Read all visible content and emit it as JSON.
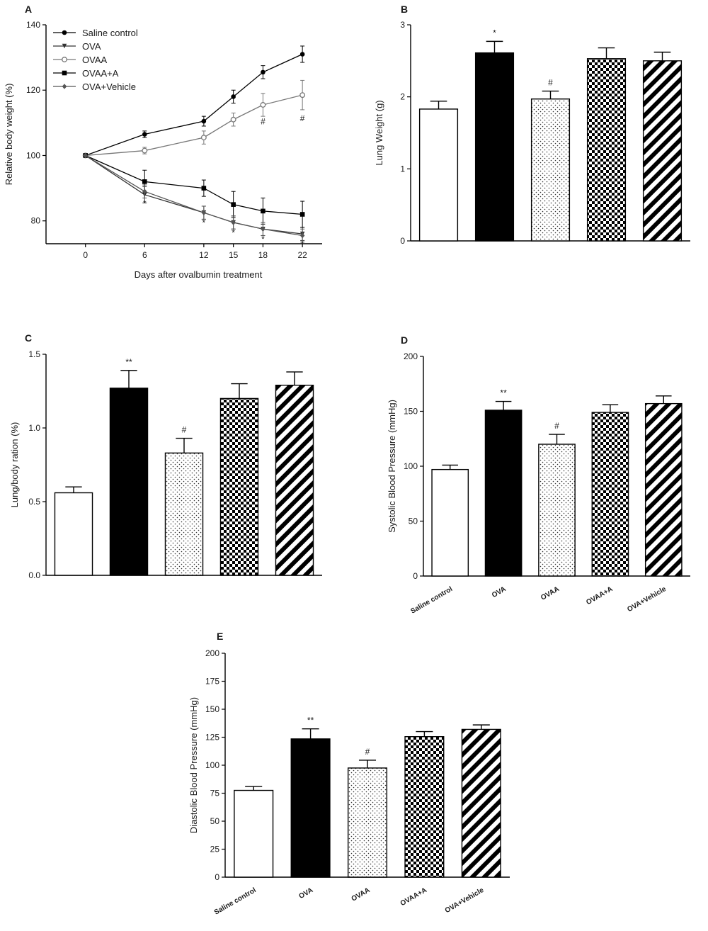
{
  "figure": {
    "panels": [
      "A",
      "B",
      "C",
      "D",
      "E"
    ]
  },
  "chart_data": [
    {
      "id": "A",
      "type": "line",
      "title": "A",
      "xlabel": "Days after ovalbumin treatment",
      "ylabel": "Relative body weight (%)",
      "x": [
        0,
        6,
        12,
        15,
        18,
        22
      ],
      "xlim": [
        -4,
        24
      ],
      "ylim": [
        73,
        140
      ],
      "yticks": [
        80,
        100,
        120,
        140
      ],
      "legend_position": "top-left",
      "grid": false,
      "series": [
        {
          "name": "Saline control",
          "marker": "filled-circle",
          "values": [
            100,
            106.5,
            110.5,
            118,
            125.5,
            131
          ],
          "errors": [
            0,
            1,
            1.5,
            2,
            2,
            2.5
          ]
        },
        {
          "name": "OVA",
          "marker": "triangle-down",
          "values": [
            100,
            88,
            82.5,
            79.5,
            77.5,
            76
          ],
          "errors": [
            0,
            2.5,
            2,
            2,
            2,
            2
          ]
        },
        {
          "name": "OVAA",
          "marker": "open-circle",
          "values": [
            100,
            101.5,
            105.5,
            111,
            115.5,
            118.5
          ],
          "errors": [
            0,
            1,
            2,
            2,
            3.5,
            4.5
          ]
        },
        {
          "name": "OVAA+A",
          "marker": "filled-square",
          "values": [
            100,
            92,
            90,
            85,
            83,
            82
          ],
          "errors": [
            0,
            3.5,
            2.5,
            4,
            4,
            4
          ]
        },
        {
          "name": "OVA+Vehicle",
          "marker": "diamond",
          "values": [
            100,
            89,
            82.5,
            79.5,
            77.5,
            75.5
          ],
          "errors": [
            0,
            2,
            2,
            2,
            2,
            2
          ]
        }
      ],
      "annotations": [
        {
          "x": 6,
          "y": 84.5,
          "text": "*"
        },
        {
          "x": 12,
          "y": 78.5,
          "text": "*"
        },
        {
          "x": 15,
          "y": 75.5,
          "text": "*"
        },
        {
          "x": 18,
          "y": 73.5,
          "text": "*"
        },
        {
          "x": 22,
          "y": 72,
          "text": "*"
        },
        {
          "x": 18,
          "y": 109.5,
          "text": "#"
        },
        {
          "x": 22,
          "y": 110.5,
          "text": "#"
        }
      ]
    },
    {
      "id": "B",
      "type": "bar",
      "title": "B",
      "ylabel": "Lung Weight (g)",
      "categories": [
        "Saline control",
        "OVA",
        "OVAA",
        "OVAA+A",
        "OVA+Vehicle"
      ],
      "values": [
        1.83,
        2.61,
        1.97,
        2.53,
        2.5
      ],
      "errors": [
        0.11,
        0.16,
        0.11,
        0.15,
        0.12
      ],
      "significance": [
        "",
        "*",
        "#",
        "",
        ""
      ],
      "ylim": [
        0,
        3
      ],
      "yticks": [
        0,
        1,
        2,
        3
      ],
      "show_category_labels": false
    },
    {
      "id": "C",
      "type": "bar",
      "title": "C",
      "ylabel": "Lung/body ration (%)",
      "categories": [
        "Saline control",
        "OVA",
        "OVAA",
        "OVAA+A",
        "OVA+Vehicle"
      ],
      "values": [
        0.56,
        1.27,
        0.83,
        1.2,
        1.29
      ],
      "errors": [
        0.04,
        0.12,
        0.1,
        0.1,
        0.09
      ],
      "significance": [
        "",
        "**",
        "#",
        "",
        ""
      ],
      "ylim": [
        0,
        1.5
      ],
      "yticks": [
        "0.0",
        "0.5",
        "1.0",
        "1.5"
      ],
      "show_category_labels": false
    },
    {
      "id": "D",
      "type": "bar",
      "title": "D",
      "ylabel": "Systolic Blood Pressure (mmHg)",
      "categories": [
        "Saline control",
        "OVA",
        "OVAA",
        "OVAA+A",
        "OVA+Vehicle"
      ],
      "values": [
        97,
        151,
        120,
        149,
        157
      ],
      "errors": [
        4,
        8,
        9,
        7,
        7
      ],
      "significance": [
        "",
        "**",
        "#",
        "",
        ""
      ],
      "ylim": [
        0,
        200
      ],
      "yticks": [
        0,
        50,
        100,
        150,
        200
      ],
      "show_category_labels": true
    },
    {
      "id": "E",
      "type": "bar",
      "title": "E",
      "ylabel": "Diastolic Blood Pressure (mmHg)",
      "categories": [
        "Saline control",
        "OVA",
        "OVAA",
        "OVAA+A",
        "OVA+Vehicle"
      ],
      "values": [
        77.5,
        123.5,
        97.5,
        125.5,
        132
      ],
      "errors": [
        3.5,
        9,
        7,
        4.5,
        4
      ],
      "significance": [
        "",
        "**",
        "#",
        "",
        ""
      ],
      "ylim": [
        0,
        200
      ],
      "yticks": [
        0,
        25,
        50,
        75,
        100,
        125,
        150,
        175,
        200
      ],
      "show_category_labels": true
    }
  ]
}
